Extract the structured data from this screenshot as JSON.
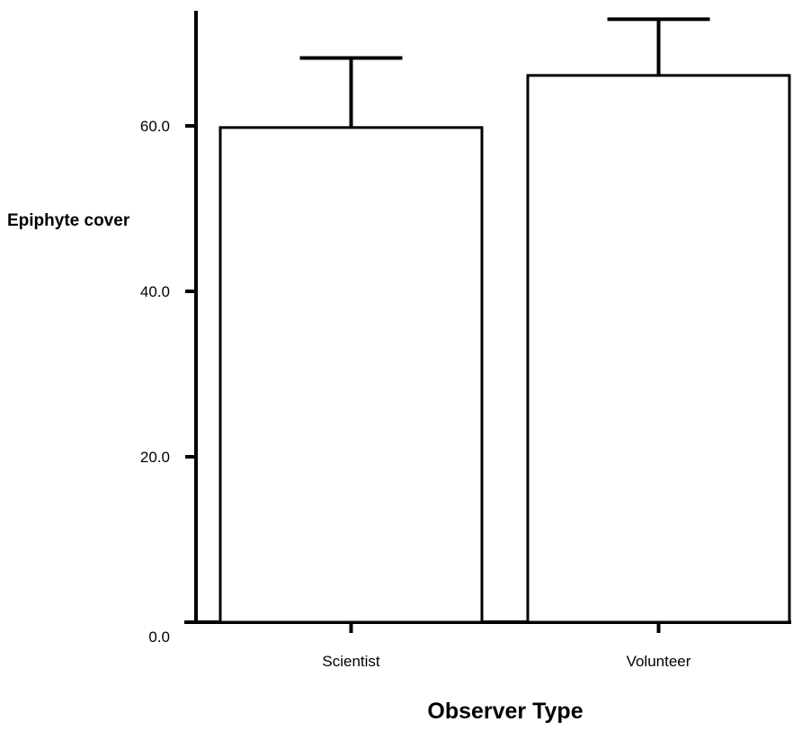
{
  "chart_data": {
    "type": "bar",
    "title": "",
    "xlabel": "Observer Type",
    "ylabel": "Epiphyte cover",
    "categories": [
      "Scientist",
      "Volunteer"
    ],
    "values": [
      59.8,
      66.1
    ],
    "error_upper": [
      68.2,
      72.9
    ],
    "ylim": [
      0,
      73
    ],
    "yticks": [
      0,
      20,
      40,
      60
    ],
    "ytick_labels": [
      "0.0",
      "20.0",
      "40.0",
      "60.0"
    ],
    "grid": false,
    "bar_fill": "#ffffff",
    "bar_stroke": "#000000"
  }
}
